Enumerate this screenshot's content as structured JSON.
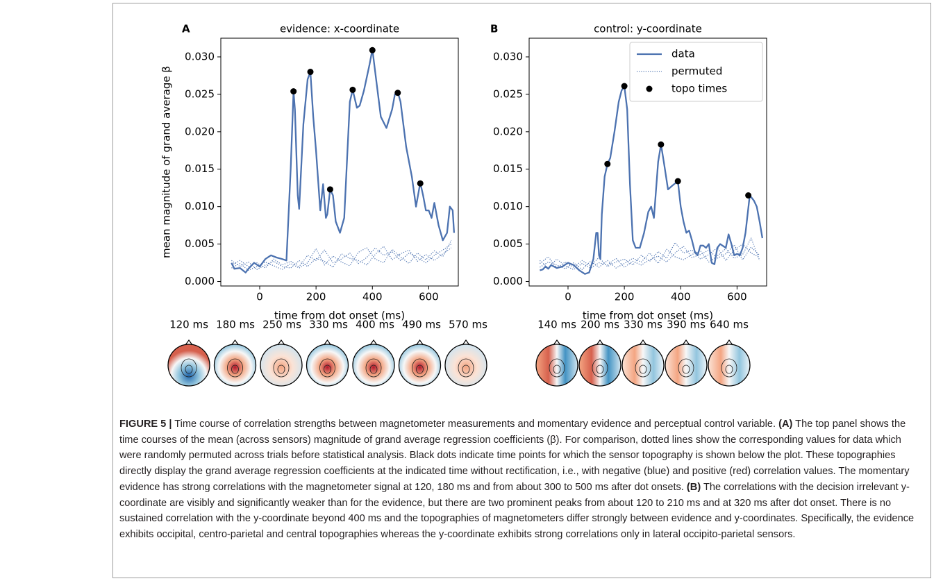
{
  "chart_data": [
    {
      "type": "line",
      "panel": "A",
      "title": "evidence: x-coordinate",
      "xlabel": "time from dot onset (ms)",
      "ylabel": "mean magnitude of grand average β",
      "xlim": [
        -138,
        705
      ],
      "ylim": [
        -0.0006,
        0.0325
      ],
      "xticks": [
        0,
        200,
        400,
        600
      ],
      "yticks": [
        {
          "value": 0,
          "label": "0.000"
        },
        {
          "value": 0.005,
          "label": "0.005"
        },
        {
          "value": 0.01,
          "label": "0.010"
        },
        {
          "value": 0.015,
          "label": "0.015"
        },
        {
          "value": 0.02,
          "label": "0.020"
        },
        {
          "value": 0.025,
          "label": "0.025"
        },
        {
          "value": 0.03,
          "label": "0.030"
        }
      ],
      "series": [
        {
          "style": "solid",
          "color": "#4c72b0",
          "x": [
            -100,
            -90,
            -70,
            -50,
            -40,
            -20,
            0,
            20,
            40,
            60,
            80,
            95,
            100,
            110,
            120,
            125,
            135,
            140,
            155,
            170,
            180,
            190,
            200,
            215,
            225,
            235,
            240,
            250,
            260,
            270,
            285,
            300,
            320,
            330,
            345,
            355,
            370,
            390,
            400,
            410,
            430,
            450,
            470,
            480,
            490,
            500,
            520,
            540,
            555,
            570,
            580,
            590,
            600,
            610,
            620,
            635,
            650,
            665,
            675,
            685,
            690
          ],
          "values": [
            0.0025,
            0.0017,
            0.0018,
            0.0012,
            0.0017,
            0.0025,
            0.002,
            0.003,
            0.0035,
            0.0032,
            0.003,
            0.0028,
            0.007,
            0.015,
            0.0254,
            0.023,
            0.0115,
            0.0097,
            0.021,
            0.027,
            0.028,
            0.022,
            0.0175,
            0.0095,
            0.013,
            0.0085,
            0.009,
            0.0123,
            0.0115,
            0.008,
            0.0065,
            0.0085,
            0.024,
            0.0256,
            0.0232,
            0.0235,
            0.0255,
            0.029,
            0.031,
            0.028,
            0.022,
            0.0205,
            0.023,
            0.025,
            0.0253,
            0.024,
            0.018,
            0.014,
            0.01,
            0.0132,
            0.0115,
            0.0095,
            0.0095,
            0.0085,
            0.0105,
            0.0075,
            0.0055,
            0.0065,
            0.01,
            0.0095,
            0.0065
          ]
        },
        {
          "style": "dotted",
          "color": "#4c72b0",
          "x": [
            -100,
            -70,
            -40,
            -10,
            20,
            50,
            80,
            110,
            140,
            170,
            200,
            230,
            260,
            290,
            320,
            350,
            380,
            410,
            440,
            470,
            500,
            530,
            560,
            590,
            620,
            650,
            680
          ],
          "values": [
            0.0022,
            0.0028,
            0.002,
            0.0025,
            0.0018,
            0.003,
            0.0022,
            0.0027,
            0.002,
            0.0035,
            0.0028,
            0.0042,
            0.0025,
            0.003,
            0.0038,
            0.0024,
            0.0032,
            0.0045,
            0.0035,
            0.004,
            0.0028,
            0.0038,
            0.0032,
            0.0025,
            0.0035,
            0.0042,
            0.005
          ]
        },
        {
          "style": "dotted",
          "color": "#4c72b0",
          "x": [
            -100,
            -70,
            -40,
            -10,
            20,
            50,
            80,
            110,
            140,
            170,
            200,
            230,
            260,
            290,
            320,
            350,
            380,
            410,
            440,
            470,
            500,
            530,
            560,
            590,
            620,
            650,
            680
          ],
          "values": [
            0.0018,
            0.0024,
            0.0015,
            0.002,
            0.0026,
            0.0021,
            0.0016,
            0.0024,
            0.0018,
            0.0025,
            0.0044,
            0.0022,
            0.0034,
            0.0026,
            0.0021,
            0.0039,
            0.0045,
            0.003,
            0.0025,
            0.0043,
            0.0033,
            0.0024,
            0.0038,
            0.0029,
            0.0041,
            0.0033,
            0.0055
          ]
        },
        {
          "style": "dotted",
          "color": "#4c72b0",
          "x": [
            -100,
            -70,
            -40,
            -10,
            20,
            50,
            80,
            110,
            140,
            170,
            200,
            230,
            260,
            290,
            320,
            350,
            380,
            410,
            440,
            470,
            500,
            530,
            560,
            590,
            620,
            650,
            680
          ],
          "values": [
            0.0028,
            0.002,
            0.0026,
            0.0016,
            0.0022,
            0.0027,
            0.002,
            0.0018,
            0.0028,
            0.002,
            0.0031,
            0.0027,
            0.0019,
            0.0037,
            0.0031,
            0.0028,
            0.0022,
            0.0036,
            0.0047,
            0.0029,
            0.0037,
            0.0042,
            0.0027,
            0.0036,
            0.0028,
            0.0037,
            0.0045
          ]
        },
        {
          "style": "markers",
          "color": "#000000",
          "x": [
            120,
            180,
            250,
            330,
            400,
            490,
            570
          ],
          "values": [
            0.0254,
            0.028,
            0.0123,
            0.0256,
            0.0309,
            0.0252,
            0.0131
          ]
        }
      ],
      "topo_labels": [
        "120 ms",
        "180 ms",
        "250 ms",
        "330 ms",
        "400 ms",
        "490 ms",
        "570 ms"
      ]
    },
    {
      "type": "line",
      "panel": "B",
      "title": "control: y-coordinate",
      "xlabel": "time from dot onset (ms)",
      "legend": "upper right",
      "xlim": [
        -138,
        705
      ],
      "ylim": [
        -0.0006,
        0.0325
      ],
      "xticks": [
        0,
        200,
        400,
        600
      ],
      "yticks": [
        {
          "value": 0,
          "label": "0.000"
        },
        {
          "value": 0.005,
          "label": "0.005"
        },
        {
          "value": 0.01,
          "label": "0.010"
        },
        {
          "value": 0.015,
          "label": "0.015"
        },
        {
          "value": 0.02,
          "label": "0.020"
        },
        {
          "value": 0.025,
          "label": "0.025"
        },
        {
          "value": 0.03,
          "label": "0.030"
        }
      ],
      "series": [
        {
          "name": "data",
          "style": "solid",
          "color": "#4c72b0",
          "x": [
            -100,
            -90,
            -80,
            -70,
            -60,
            -40,
            -20,
            0,
            20,
            40,
            60,
            75,
            90,
            100,
            105,
            110,
            115,
            120,
            130,
            140,
            150,
            165,
            180,
            190,
            200,
            210,
            220,
            230,
            240,
            255,
            270,
            285,
            295,
            305,
            320,
            330,
            340,
            355,
            370,
            390,
            400,
            410,
            420,
            430,
            440,
            450,
            460,
            470,
            480,
            490,
            500,
            510,
            520,
            530,
            540,
            560,
            570,
            580,
            590,
            600,
            610,
            620,
            630,
            645,
            660,
            670,
            680,
            690
          ],
          "values": [
            0.0015,
            0.0016,
            0.002,
            0.0017,
            0.0022,
            0.0018,
            0.002,
            0.0025,
            0.0022,
            0.0015,
            0.001,
            0.0012,
            0.003,
            0.0065,
            0.0065,
            0.0035,
            0.003,
            0.009,
            0.014,
            0.0157,
            0.0165,
            0.02,
            0.024,
            0.0255,
            0.0261,
            0.023,
            0.013,
            0.0055,
            0.0045,
            0.0045,
            0.0065,
            0.0093,
            0.01,
            0.0085,
            0.016,
            0.0183,
            0.016,
            0.0123,
            0.0128,
            0.0134,
            0.01,
            0.008,
            0.0065,
            0.0068,
            0.0055,
            0.004,
            0.0035,
            0.0048,
            0.0048,
            0.0045,
            0.005,
            0.0025,
            0.0023,
            0.0045,
            0.005,
            0.0045,
            0.0063,
            0.005,
            0.0035,
            0.0037,
            0.0035,
            0.0045,
            0.0065,
            0.0115,
            0.0108,
            0.01,
            0.008,
            0.0058
          ]
        },
        {
          "name": "permuted",
          "style": "dotted",
          "color": "#4c72b0",
          "x": [
            -100,
            -70,
            -40,
            -10,
            20,
            50,
            80,
            110,
            140,
            170,
            200,
            230,
            260,
            290,
            320,
            350,
            380,
            410,
            440,
            470,
            500,
            530,
            560,
            590,
            620,
            650,
            680
          ],
          "values": [
            0.0024,
            0.0033,
            0.0018,
            0.0026,
            0.0019,
            0.0028,
            0.0021,
            0.0032,
            0.002,
            0.0026,
            0.003,
            0.0022,
            0.0035,
            0.0027,
            0.004,
            0.0031,
            0.0052,
            0.0038,
            0.0042,
            0.003,
            0.0036,
            0.0045,
            0.0028,
            0.0042,
            0.005,
            0.0038,
            0.0032
          ]
        },
        {
          "style": "dotted",
          "color": "#4c72b0",
          "x": [
            -100,
            -70,
            -40,
            -10,
            20,
            50,
            80,
            110,
            140,
            170,
            200,
            230,
            260,
            290,
            320,
            350,
            380,
            410,
            440,
            470,
            500,
            530,
            560,
            590,
            620,
            650,
            680
          ],
          "values": [
            0.0019,
            0.0026,
            0.0022,
            0.0017,
            0.0025,
            0.0016,
            0.0027,
            0.0019,
            0.0028,
            0.0018,
            0.0024,
            0.0031,
            0.0026,
            0.0038,
            0.0024,
            0.0043,
            0.0033,
            0.0029,
            0.0036,
            0.0041,
            0.0026,
            0.0034,
            0.0044,
            0.0031,
            0.0036,
            0.0058,
            0.0028
          ]
        },
        {
          "style": "dotted",
          "color": "#4c72b0",
          "x": [
            -100,
            -70,
            -40,
            -10,
            20,
            50,
            80,
            110,
            140,
            170,
            200,
            230,
            260,
            290,
            320,
            350,
            380,
            410,
            440,
            470,
            500,
            530,
            560,
            590,
            620,
            650,
            680
          ],
          "values": [
            0.0028,
            0.0018,
            0.003,
            0.0021,
            0.0016,
            0.0024,
            0.0018,
            0.0025,
            0.0022,
            0.0031,
            0.0019,
            0.0027,
            0.0022,
            0.0029,
            0.0034,
            0.0026,
            0.0038,
            0.0047,
            0.0032,
            0.0036,
            0.0042,
            0.0031,
            0.0037,
            0.0049,
            0.0029,
            0.0046,
            0.0035
          ]
        },
        {
          "name": "topo times",
          "style": "markers",
          "color": "#000000",
          "x": [
            140,
            200,
            330,
            390,
            640
          ],
          "values": [
            0.0157,
            0.0261,
            0.0183,
            0.0134,
            0.0115
          ]
        }
      ],
      "topo_labels": [
        "140 ms",
        "200 ms",
        "330 ms",
        "390 ms",
        "640 ms"
      ]
    }
  ],
  "caption": {
    "figure_label": "FIGURE 5 |",
    "text_1": " Time course of correlation strengths between magnetometer measurements and momentary evidence and perceptual control variable. ",
    "label_a": "(A)",
    "text_2": " The top panel shows the time courses of the mean (across sensors) magnitude of grand average regression coefficients (β). For comparison, dotted lines show the corresponding values for data which were randomly permuted across trials before statistical analysis. Black dots indicate time points for which the sensor topography is shown below the plot. These topographies directly display the grand average regression coefficients at the indicated time without rectification, i.e., with negative (blue) and positive (red) correlation values. The momentary evidence has strong correlations with the magnetometer signal at 120, 180 ms and from about 300 to 500 ms after dot onsets. ",
    "label_b": "(B)",
    "text_3": " The correlations with the decision irrelevant y-coordinate are visibly and significantly weaker than for the evidence, but there are two prominent peaks from about 120 to 210 ms and at 320 ms after dot onset. There is no sustained correlation with the y-coordinate beyond 400 ms and the topographies of magnetometers differ strongly between evidence and y-coordinates. Specifically, the evidence exhibits occipital, centro-parietal and central topographies whereas the y-coordinate exhibits strong correlations only in lateral occipito-parietal sensors."
  }
}
